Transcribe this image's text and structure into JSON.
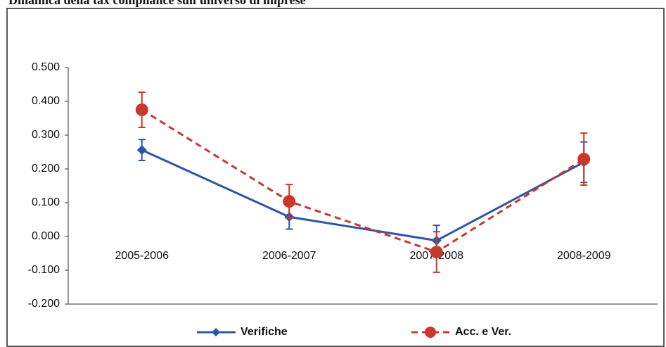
{
  "chart_data": {
    "type": "line",
    "title": "Dinamica della tax compliance sull'universo di imprese",
    "categories": [
      "2005-2006",
      "2006-2007",
      "2007-2008",
      "2008-2009"
    ],
    "series": [
      {
        "name": "Verifiche",
        "color": "#2f55a4",
        "dash": false,
        "values": [
          0.256,
          0.058,
          -0.012,
          0.22
        ],
        "errors": [
          0.031,
          0.036,
          0.045,
          0.06
        ]
      },
      {
        "name": "Acc. e Ver.",
        "color": "#c8382d",
        "dash": true,
        "values": [
          0.375,
          0.104,
          -0.046,
          0.229
        ],
        "errors": [
          0.052,
          0.05,
          0.06,
          0.077
        ]
      }
    ],
    "ylim": [
      -0.2,
      0.5
    ],
    "yticks": [
      {
        "value": -0.2,
        "label": "-0.200"
      },
      {
        "value": -0.1,
        "label": "-0.100"
      },
      {
        "value": 0,
        "label": "0.000"
      },
      {
        "value": 0.1,
        "label": "0.100"
      },
      {
        "value": 0.2,
        "label": "0.200"
      },
      {
        "value": 0.3,
        "label": "0.300"
      },
      {
        "value": 0.4,
        "label": "0.400"
      },
      {
        "value": 0.5,
        "label": "0.500"
      }
    ],
    "grid": false,
    "legend": "bottom"
  }
}
